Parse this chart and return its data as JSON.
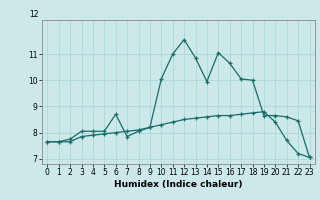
{
  "xlabel": "Humidex (Indice chaleur)",
  "background_color": "#cce8e8",
  "line_color": "#1a6b6b",
  "xlim": [
    -0.5,
    23.5
  ],
  "ylim": [
    6.8,
    12.3
  ],
  "yticks": [
    7,
    8,
    9,
    10,
    11
  ],
  "xticks": [
    0,
    1,
    2,
    3,
    4,
    5,
    6,
    7,
    8,
    9,
    10,
    11,
    12,
    13,
    14,
    15,
    16,
    17,
    18,
    19,
    20,
    21,
    22,
    23
  ],
  "line1_x": [
    0,
    1,
    2,
    3,
    4,
    5,
    6,
    7,
    8,
    9,
    10,
    11,
    12,
    13,
    14,
    15,
    16,
    17,
    18,
    19,
    20,
    21,
    22,
    23
  ],
  "line1_y": [
    7.65,
    7.65,
    7.75,
    8.05,
    8.05,
    8.05,
    8.7,
    7.85,
    8.05,
    8.2,
    10.05,
    11.0,
    11.55,
    10.85,
    9.95,
    11.05,
    10.65,
    10.05,
    10.0,
    8.65,
    8.65,
    8.6,
    8.45,
    7.05
  ],
  "line2_x": [
    0,
    1,
    2,
    3,
    4,
    5,
    6,
    7,
    8,
    9,
    10,
    11,
    12,
    13,
    14,
    15,
    16,
    17,
    18,
    19,
    20,
    21,
    22,
    23
  ],
  "line2_y": [
    7.65,
    7.65,
    7.65,
    7.85,
    7.9,
    7.95,
    8.0,
    8.05,
    8.1,
    8.2,
    8.3,
    8.4,
    8.5,
    8.55,
    8.6,
    8.65,
    8.65,
    8.7,
    8.75,
    8.8,
    8.4,
    7.7,
    7.2,
    7.05
  ],
  "tick_fontsize": 5.5,
  "xlabel_fontsize": 6.5,
  "grid_color": "#a8d4d4",
  "marker_size": 3.5,
  "linewidth": 0.9
}
